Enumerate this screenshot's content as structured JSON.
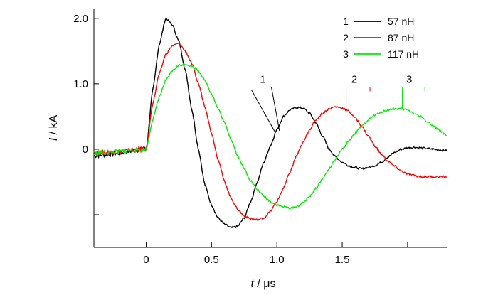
{
  "chart_data": {
    "type": "line",
    "xlabel_var": "t",
    "xlabel_unit": " / μs",
    "ylabel_var": "I",
    "ylabel_unit": " / kA",
    "xlim": [
      -0.4,
      2.3
    ],
    "ylim": [
      -1.5,
      2.15
    ],
    "grid": false,
    "legend_position": "top-right",
    "x_ticks": [
      {
        "value": 0,
        "label": "0"
      },
      {
        "value": 0.5,
        "label": "0.5"
      },
      {
        "value": 1.0,
        "label": "1.0"
      },
      {
        "value": 1.5,
        "label": "1.5"
      }
    ],
    "x_minor_ticks": [
      2.0
    ],
    "y_ticks": [
      {
        "value": 2.0,
        "label": "2.0"
      },
      {
        "value": 1.0,
        "label": "1.0"
      },
      {
        "value": 0,
        "label": "0"
      }
    ],
    "y_minor_ticks": [
      -1.0
    ],
    "series": [
      {
        "id": "1",
        "name": "57 nH",
        "color": "#000000",
        "curve_label": "1",
        "points": [
          [
            -0.4,
            -0.1
          ],
          [
            -0.3,
            -0.08
          ],
          [
            0,
            0
          ],
          [
            0.05,
            0.9
          ],
          [
            0.1,
            1.6
          ],
          [
            0.15,
            2.0
          ],
          [
            0.2,
            1.9
          ],
          [
            0.25,
            1.65
          ],
          [
            0.3,
            1.2
          ],
          [
            0.35,
            0.6
          ],
          [
            0.4,
            0.0
          ],
          [
            0.45,
            -0.55
          ],
          [
            0.5,
            -0.85
          ],
          [
            0.55,
            -1.05
          ],
          [
            0.6,
            -1.15
          ],
          [
            0.65,
            -1.2
          ],
          [
            0.7,
            -1.18
          ],
          [
            0.75,
            -1.05
          ],
          [
            0.8,
            -0.8
          ],
          [
            0.85,
            -0.5
          ],
          [
            0.9,
            -0.2
          ],
          [
            0.95,
            0.05
          ],
          [
            1.0,
            0.3
          ],
          [
            1.05,
            0.5
          ],
          [
            1.1,
            0.6
          ],
          [
            1.15,
            0.64
          ],
          [
            1.2,
            0.63
          ],
          [
            1.25,
            0.55
          ],
          [
            1.3,
            0.4
          ],
          [
            1.35,
            0.2
          ],
          [
            1.4,
            0.0
          ],
          [
            1.45,
            -0.12
          ],
          [
            1.5,
            -0.2
          ],
          [
            1.55,
            -0.25
          ],
          [
            1.6,
            -0.28
          ],
          [
            1.65,
            -0.3
          ],
          [
            1.7,
            -0.28
          ],
          [
            1.75,
            -0.25
          ],
          [
            1.8,
            -0.2
          ],
          [
            1.85,
            -0.12
          ],
          [
            1.9,
            -0.05
          ],
          [
            1.95,
            0.0
          ],
          [
            2.0,
            0.02
          ],
          [
            2.05,
            0.03
          ],
          [
            2.1,
            0.02
          ],
          [
            2.3,
            -0.02
          ]
        ]
      },
      {
        "id": "2",
        "name": "87 nH",
        "color": "#ff0000",
        "curve_label": "2",
        "points": [
          [
            -0.4,
            -0.05
          ],
          [
            -0.3,
            -0.05
          ],
          [
            0,
            0
          ],
          [
            0.05,
            0.7
          ],
          [
            0.1,
            1.15
          ],
          [
            0.15,
            1.45
          ],
          [
            0.2,
            1.58
          ],
          [
            0.25,
            1.62
          ],
          [
            0.3,
            1.5
          ],
          [
            0.35,
            1.3
          ],
          [
            0.4,
            1.0
          ],
          [
            0.45,
            0.65
          ],
          [
            0.5,
            0.25
          ],
          [
            0.55,
            -0.15
          ],
          [
            0.6,
            -0.5
          ],
          [
            0.65,
            -0.75
          ],
          [
            0.7,
            -0.92
          ],
          [
            0.75,
            -1.02
          ],
          [
            0.8,
            -1.06
          ],
          [
            0.85,
            -1.08
          ],
          [
            0.9,
            -1.05
          ],
          [
            0.95,
            -0.95
          ],
          [
            1.0,
            -0.8
          ],
          [
            1.05,
            -0.6
          ],
          [
            1.1,
            -0.35
          ],
          [
            1.15,
            -0.1
          ],
          [
            1.2,
            0.1
          ],
          [
            1.25,
            0.3
          ],
          [
            1.3,
            0.45
          ],
          [
            1.35,
            0.55
          ],
          [
            1.4,
            0.62
          ],
          [
            1.45,
            0.65
          ],
          [
            1.5,
            0.63
          ],
          [
            1.55,
            0.58
          ],
          [
            1.6,
            0.48
          ],
          [
            1.65,
            0.35
          ],
          [
            1.7,
            0.2
          ],
          [
            1.75,
            0.05
          ],
          [
            1.8,
            -0.08
          ],
          [
            1.85,
            -0.18
          ],
          [
            1.9,
            -0.26
          ],
          [
            1.95,
            -0.33
          ],
          [
            2.0,
            -0.38
          ],
          [
            2.05,
            -0.4
          ],
          [
            2.1,
            -0.42
          ],
          [
            2.2,
            -0.42
          ],
          [
            2.3,
            -0.42
          ]
        ]
      },
      {
        "id": "3",
        "name": "117 nH",
        "color": "#00ee00",
        "curve_label": "3",
        "points": [
          [
            -0.4,
            -0.07
          ],
          [
            -0.3,
            -0.05
          ],
          [
            0,
            0
          ],
          [
            0.05,
            0.45
          ],
          [
            0.1,
            0.8
          ],
          [
            0.15,
            1.05
          ],
          [
            0.2,
            1.2
          ],
          [
            0.25,
            1.28
          ],
          [
            0.3,
            1.3
          ],
          [
            0.35,
            1.27
          ],
          [
            0.4,
            1.2
          ],
          [
            0.45,
            1.05
          ],
          [
            0.5,
            0.85
          ],
          [
            0.55,
            0.62
          ],
          [
            0.6,
            0.4
          ],
          [
            0.65,
            0.15
          ],
          [
            0.7,
            -0.1
          ],
          [
            0.75,
            -0.3
          ],
          [
            0.8,
            -0.48
          ],
          [
            0.85,
            -0.62
          ],
          [
            0.9,
            -0.72
          ],
          [
            0.95,
            -0.8
          ],
          [
            1.0,
            -0.85
          ],
          [
            1.05,
            -0.88
          ],
          [
            1.1,
            -0.9
          ],
          [
            1.15,
            -0.88
          ],
          [
            1.2,
            -0.82
          ],
          [
            1.25,
            -0.72
          ],
          [
            1.3,
            -0.6
          ],
          [
            1.35,
            -0.45
          ],
          [
            1.4,
            -0.3
          ],
          [
            1.45,
            -0.15
          ],
          [
            1.5,
            0.0
          ],
          [
            1.55,
            0.12
          ],
          [
            1.6,
            0.25
          ],
          [
            1.65,
            0.35
          ],
          [
            1.7,
            0.45
          ],
          [
            1.75,
            0.52
          ],
          [
            1.8,
            0.57
          ],
          [
            1.85,
            0.6
          ],
          [
            1.9,
            0.62
          ],
          [
            1.95,
            0.62
          ],
          [
            2.0,
            0.6
          ],
          [
            2.05,
            0.55
          ],
          [
            2.1,
            0.5
          ],
          [
            2.15,
            0.42
          ],
          [
            2.2,
            0.35
          ],
          [
            2.25,
            0.28
          ],
          [
            2.3,
            0.2
          ]
        ]
      }
    ],
    "curve_label_anchors": [
      {
        "series": "1",
        "x": 1.02,
        "y": 0.28,
        "label_x": 0.86,
        "label_y": 0.95
      },
      {
        "series": "2",
        "x": 1.53,
        "y": 0.64,
        "label_x": 1.56,
        "label_y": 0.95
      },
      {
        "series": "3",
        "x": 1.96,
        "y": 0.62,
        "label_x": 1.98,
        "label_y": 0.95
      }
    ]
  }
}
